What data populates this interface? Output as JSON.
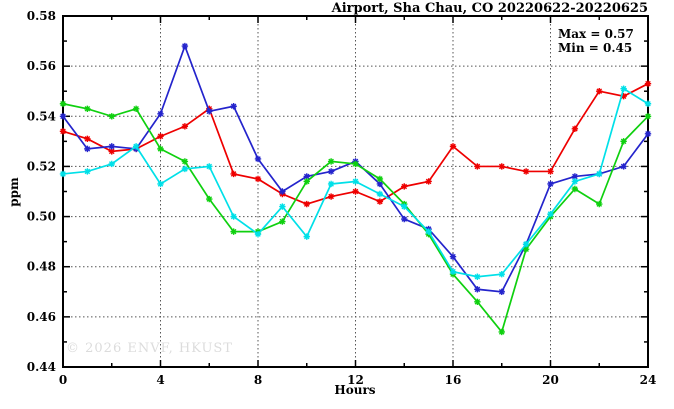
{
  "watermark": "© 2026 ENVF, HKUST",
  "chart_data": {
    "type": "line",
    "title": "Airport, Sha Chau, CO 20220622-20220625",
    "xlabel": "Hours",
    "ylabel": "ppm",
    "xlim": [
      0,
      24
    ],
    "ylim": [
      0.44,
      0.58
    ],
    "x_major_ticks": [
      0,
      4,
      8,
      12,
      16,
      20,
      24
    ],
    "x_minor_step": 2,
    "y_major_step": 0.02,
    "y_minor_step": 0.01,
    "grid": "dotted gridlines at major ticks, ticks on all four sides",
    "legend": "none",
    "annotations": [
      "Max = 0.57",
      "Min = 0.45"
    ],
    "marker": "asterisk",
    "x": [
      0,
      1,
      2,
      3,
      4,
      5,
      6,
      7,
      8,
      9,
      10,
      11,
      12,
      13,
      14,
      15,
      16,
      17,
      18,
      19,
      20,
      21,
      22,
      23,
      24
    ],
    "series": [
      {
        "name": "red",
        "color": "#ee0000",
        "values": [
          0.534,
          0.531,
          0.526,
          0.527,
          0.532,
          0.536,
          0.543,
          0.517,
          0.515,
          0.509,
          0.505,
          0.508,
          0.51,
          0.506,
          0.512,
          0.514,
          0.528,
          0.52,
          0.52,
          0.518,
          0.518,
          0.535,
          0.55,
          0.548,
          0.553
        ]
      },
      {
        "name": "blue",
        "color": "#2424cc",
        "values": [
          0.54,
          0.527,
          0.528,
          0.527,
          0.541,
          0.568,
          0.542,
          0.544,
          0.523,
          0.51,
          0.516,
          0.518,
          0.522,
          0.513,
          0.499,
          0.495,
          0.484,
          0.471,
          0.47,
          0.489,
          0.513,
          0.516,
          0.517,
          0.52,
          0.533
        ]
      },
      {
        "name": "green",
        "color": "#0fd00f",
        "values": [
          0.545,
          0.543,
          0.54,
          0.543,
          0.527,
          0.522,
          0.507,
          0.494,
          0.494,
          0.498,
          0.514,
          0.522,
          0.521,
          0.515,
          0.505,
          0.493,
          0.477,
          0.466,
          0.454,
          0.487,
          0.5,
          0.511,
          0.505,
          0.53,
          0.54
        ]
      },
      {
        "name": "cyan",
        "color": "#00e0e8",
        "values": [
          0.517,
          0.518,
          0.521,
          0.528,
          0.513,
          0.519,
          0.52,
          0.5,
          0.493,
          0.504,
          0.492,
          0.513,
          0.514,
          0.509,
          0.504,
          0.494,
          0.478,
          0.476,
          0.477,
          0.489,
          0.501,
          0.514,
          0.517,
          0.551,
          0.545
        ]
      }
    ]
  }
}
